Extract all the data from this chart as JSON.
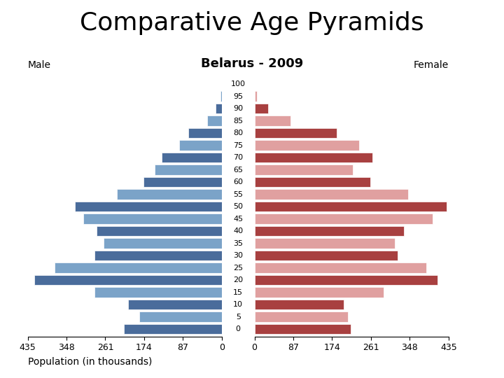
{
  "title": "Comparative Age Pyramids",
  "subtitle": "Belarus - 2009",
  "xlabel": "Population (in thousands)",
  "male_label": "Male",
  "female_label": "Female",
  "age_groups": [
    0,
    5,
    10,
    15,
    20,
    25,
    30,
    35,
    40,
    45,
    50,
    55,
    60,
    65,
    70,
    75,
    80,
    85,
    90,
    95,
    100
  ],
  "male_values": [
    220,
    185,
    210,
    285,
    420,
    375,
    285,
    265,
    280,
    310,
    330,
    235,
    175,
    150,
    135,
    95,
    75,
    32,
    14,
    3,
    0
  ],
  "female_values": [
    215,
    210,
    200,
    290,
    410,
    385,
    320,
    315,
    335,
    400,
    430,
    345,
    260,
    220,
    265,
    235,
    185,
    80,
    30,
    5,
    0
  ],
  "male_color_dark": "#4a6c9b",
  "male_color_light": "#7ba3c8",
  "female_color_dark": "#a84040",
  "female_color_light": "#e0a0a0",
  "xlim": 435,
  "xticks": [
    0,
    87,
    174,
    261,
    348,
    435
  ],
  "background_color": "#ffffff",
  "title_fontsize": 26,
  "subtitle_fontsize": 13,
  "male_female_fontsize": 10,
  "tick_fontsize": 9,
  "age_fontsize": 8,
  "xlabel_fontsize": 10
}
